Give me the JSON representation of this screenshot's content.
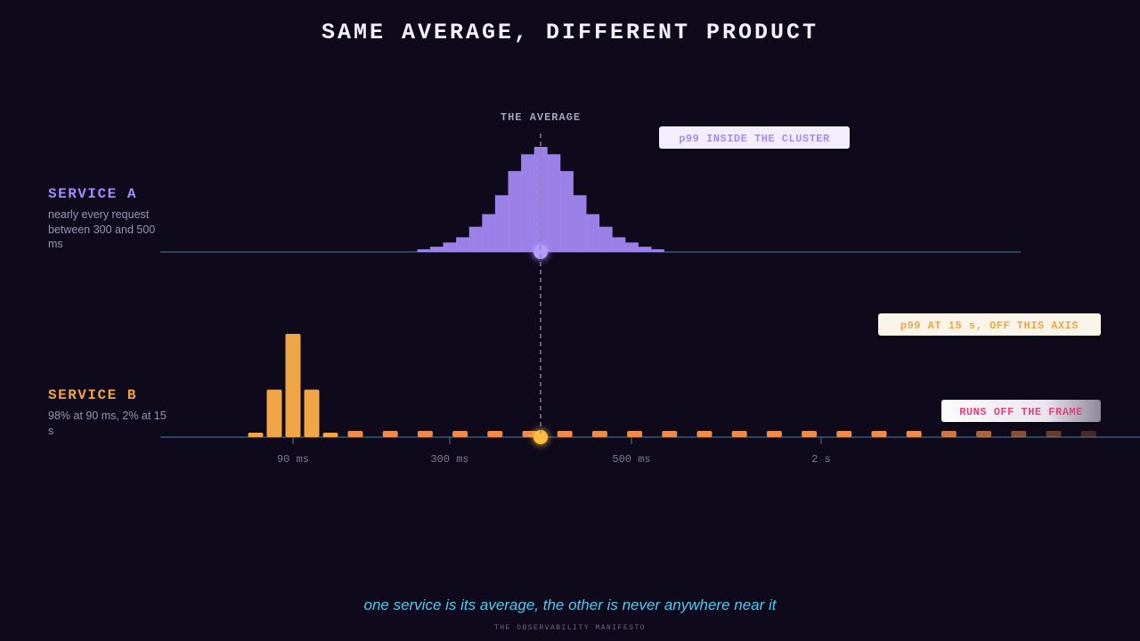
{
  "title": "SAME AVERAGE, DIFFERENT PRODUCT",
  "service_a": {
    "name": "SERVICE A",
    "description": "nearly every request between 300 and 500 ms",
    "color": "#a78bfa"
  },
  "service_b": {
    "name": "SERVICE B",
    "description": "98% at 90 ms, 2% at 15 s",
    "color": "#f0a646"
  },
  "caption": "one service is its average, the other is never anywhere near it",
  "footer": "THE OBSERVABILITY MANIFESTO",
  "chart_data": {
    "type": "bar",
    "axis": {
      "ticks": [
        "90 ms",
        "300 ms",
        "500 ms",
        "2 s"
      ],
      "ticks_apply_to": "service_b axis"
    },
    "average_marker": {
      "label": "THE AVERAGE"
    },
    "annotations": [
      {
        "text": "p99 INSIDE THE CLUSTER",
        "series": "SERVICE A"
      },
      {
        "text": "p99 AT 15 s, OFF THIS AXIS",
        "series": "SERVICE B"
      },
      {
        "text": "RUNS OFF THE FRAME",
        "series": "SERVICE B"
      }
    ],
    "series": [
      {
        "name": "SERVICE A",
        "color": "#a78bfa",
        "bins_relative_height": [
          0.02,
          0.05,
          0.09,
          0.14,
          0.24,
          0.36,
          0.54,
          0.77,
          0.93,
          1.0,
          0.93,
          0.77,
          0.54,
          0.36,
          0.24,
          0.14,
          0.09,
          0.05,
          0.02
        ]
      },
      {
        "name": "SERVICE B",
        "color": "#f0a646",
        "tail_color": "#f08a4b",
        "main_bins_relative_height": [
          0.04,
          0.46,
          1.0,
          0.46,
          0.04
        ],
        "tail_bins_relative_height": [
          0.06,
          0.06,
          0.06,
          0.06,
          0.06,
          0.06,
          0.06,
          0.06,
          0.06,
          0.06,
          0.06,
          0.06,
          0.06,
          0.06,
          0.06,
          0.06,
          0.06,
          0.06,
          0.06,
          0.06,
          0.06,
          0.06
        ]
      }
    ]
  }
}
